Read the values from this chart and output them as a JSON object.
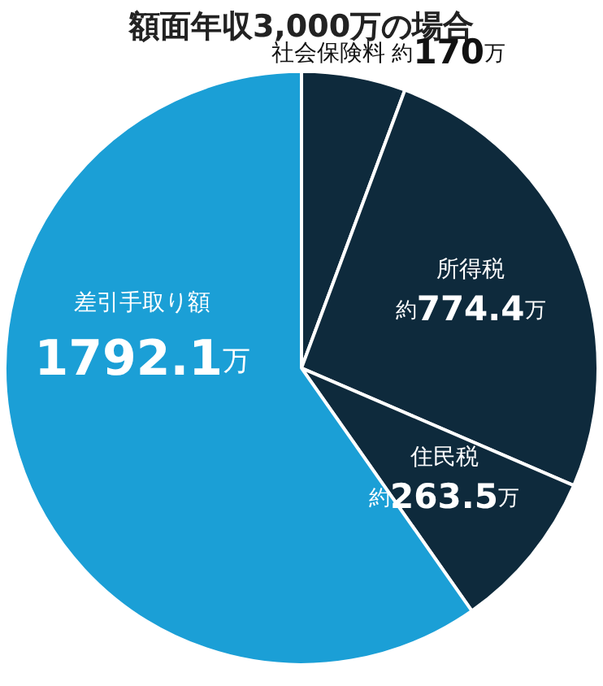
{
  "chart_data": {
    "type": "pie",
    "title": "額面年収3,000万の場合",
    "categories": [
      "社会保険料",
      "所得税",
      "住民税",
      "差引手取り額"
    ],
    "values": [
      170,
      774.4,
      263.5,
      1792.1
    ],
    "colors": [
      "#0e2a3c",
      "#0e2a3c",
      "#0e2a3c",
      "#1b9fd6"
    ],
    "value_labels": [
      "約170万",
      "約774.4万",
      "約263.5万",
      "1792.1万"
    ]
  }
}
